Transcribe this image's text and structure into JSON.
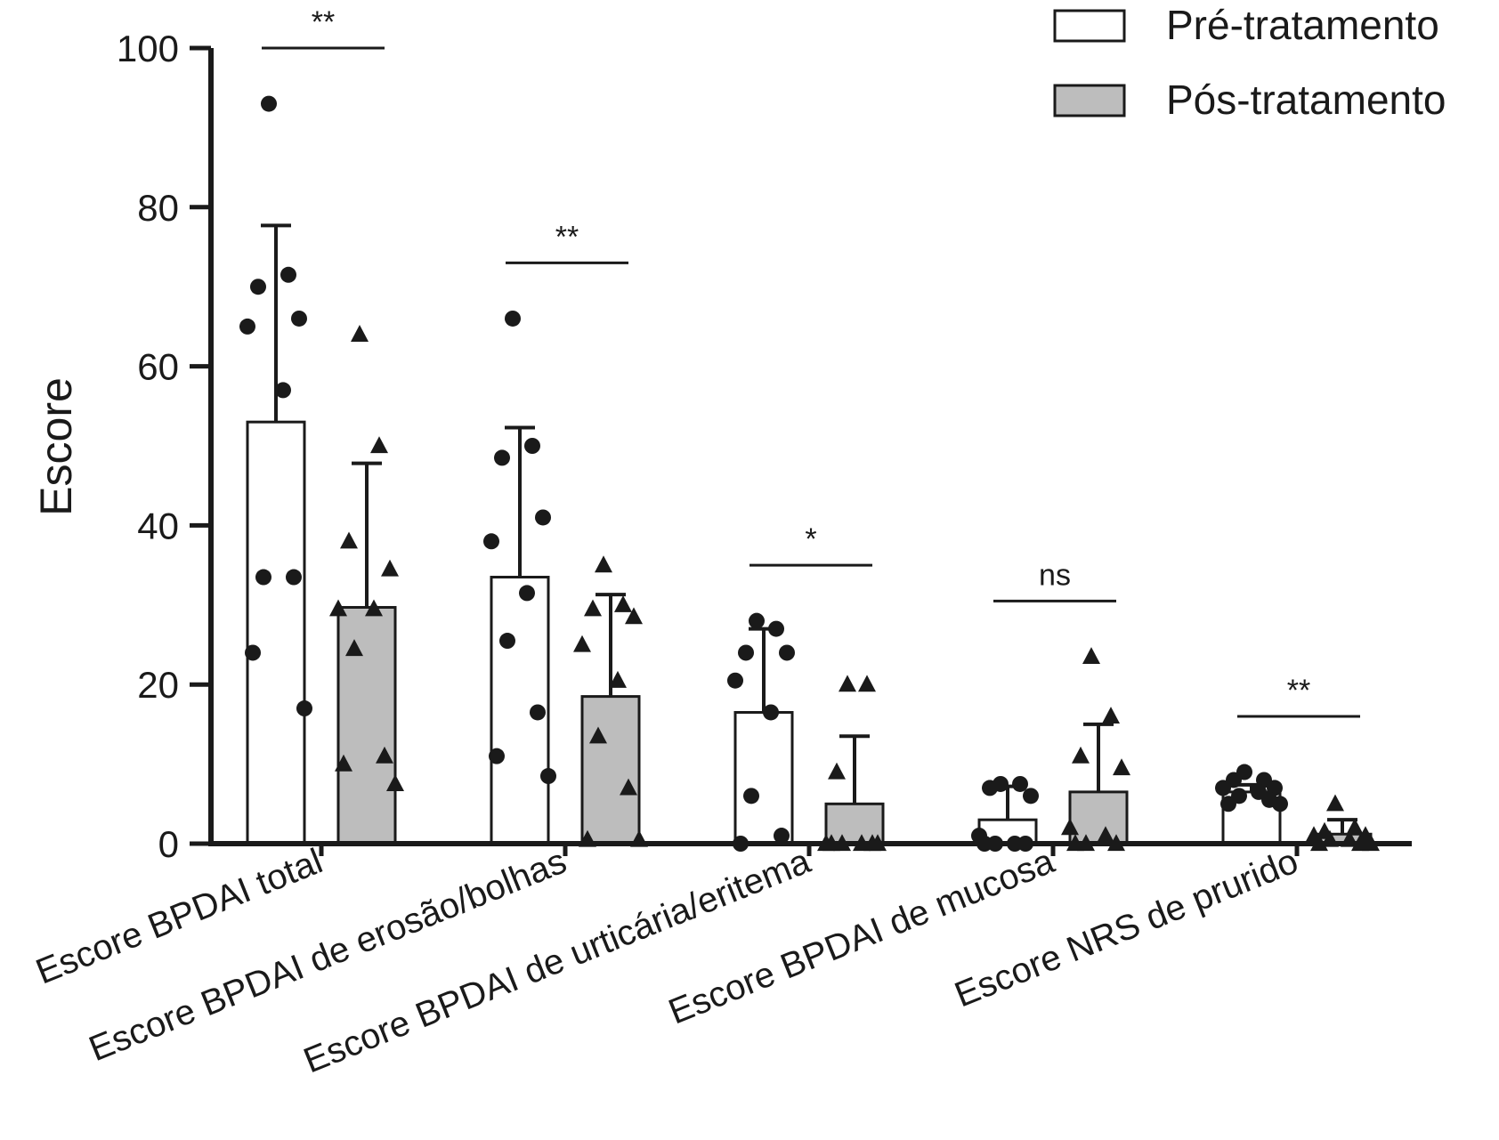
{
  "chart_data": {
    "type": "bar",
    "ylabel": "Escore",
    "ylim": [
      0,
      100
    ],
    "yticks": [
      0,
      20,
      40,
      60,
      80,
      100
    ],
    "legend_position": "top-right",
    "categories": [
      "Escore BPDAI total",
      "Escore BPDAI de erosão/bolhas",
      "Escore BPDAI de urticária/eritema",
      "Escore BPDAI de mucosa",
      "Escore NRS de prurido"
    ],
    "series": [
      {
        "name": "Pré-tratamento",
        "fill": "#ffffff",
        "marker": "circle",
        "values": [
          53,
          33.5,
          16.5,
          3,
          6.5
        ],
        "error": [
          77.7,
          52.3,
          27,
          7.2,
          7.4
        ],
        "points": [
          [
            93,
            71.5,
            70,
            66,
            65,
            57,
            33.5,
            33.5,
            24,
            17
          ],
          [
            66,
            50,
            48.5,
            41,
            38,
            31.5,
            25.5,
            16.5,
            11,
            8.5
          ],
          [
            28,
            27,
            24,
            24,
            20.5,
            16.5,
            6,
            1,
            0
          ],
          [
            7.5,
            7.5,
            7,
            6,
            1,
            0,
            0,
            0,
            0
          ],
          [
            9,
            8,
            8,
            7,
            7,
            6.5,
            6,
            5.5,
            5,
            5
          ]
        ]
      },
      {
        "name": "Pós-tratamento",
        "fill": "#bdbdbd",
        "marker": "triangle",
        "values": [
          29.7,
          18.5,
          5,
          6.5,
          1.2
        ],
        "error": [
          47.8,
          31.3,
          13.5,
          15,
          3
        ],
        "points": [
          [
            64,
            50,
            38,
            34.5,
            29.5,
            29.5,
            24.5,
            11,
            10,
            7.5
          ],
          [
            35,
            30,
            29.5,
            28.5,
            25,
            20.5,
            13.5,
            7,
            0.5,
            0.5
          ],
          [
            20,
            20,
            9,
            0,
            0,
            0,
            0,
            0,
            0
          ],
          [
            23.5,
            16,
            11,
            9.5,
            2,
            1,
            0,
            0,
            0
          ],
          [
            5,
            2,
            1.5,
            1,
            1,
            0.5,
            0.5,
            0,
            0,
            0
          ]
        ]
      }
    ],
    "significance": [
      "**",
      "**",
      "*",
      "ns",
      "**"
    ]
  }
}
